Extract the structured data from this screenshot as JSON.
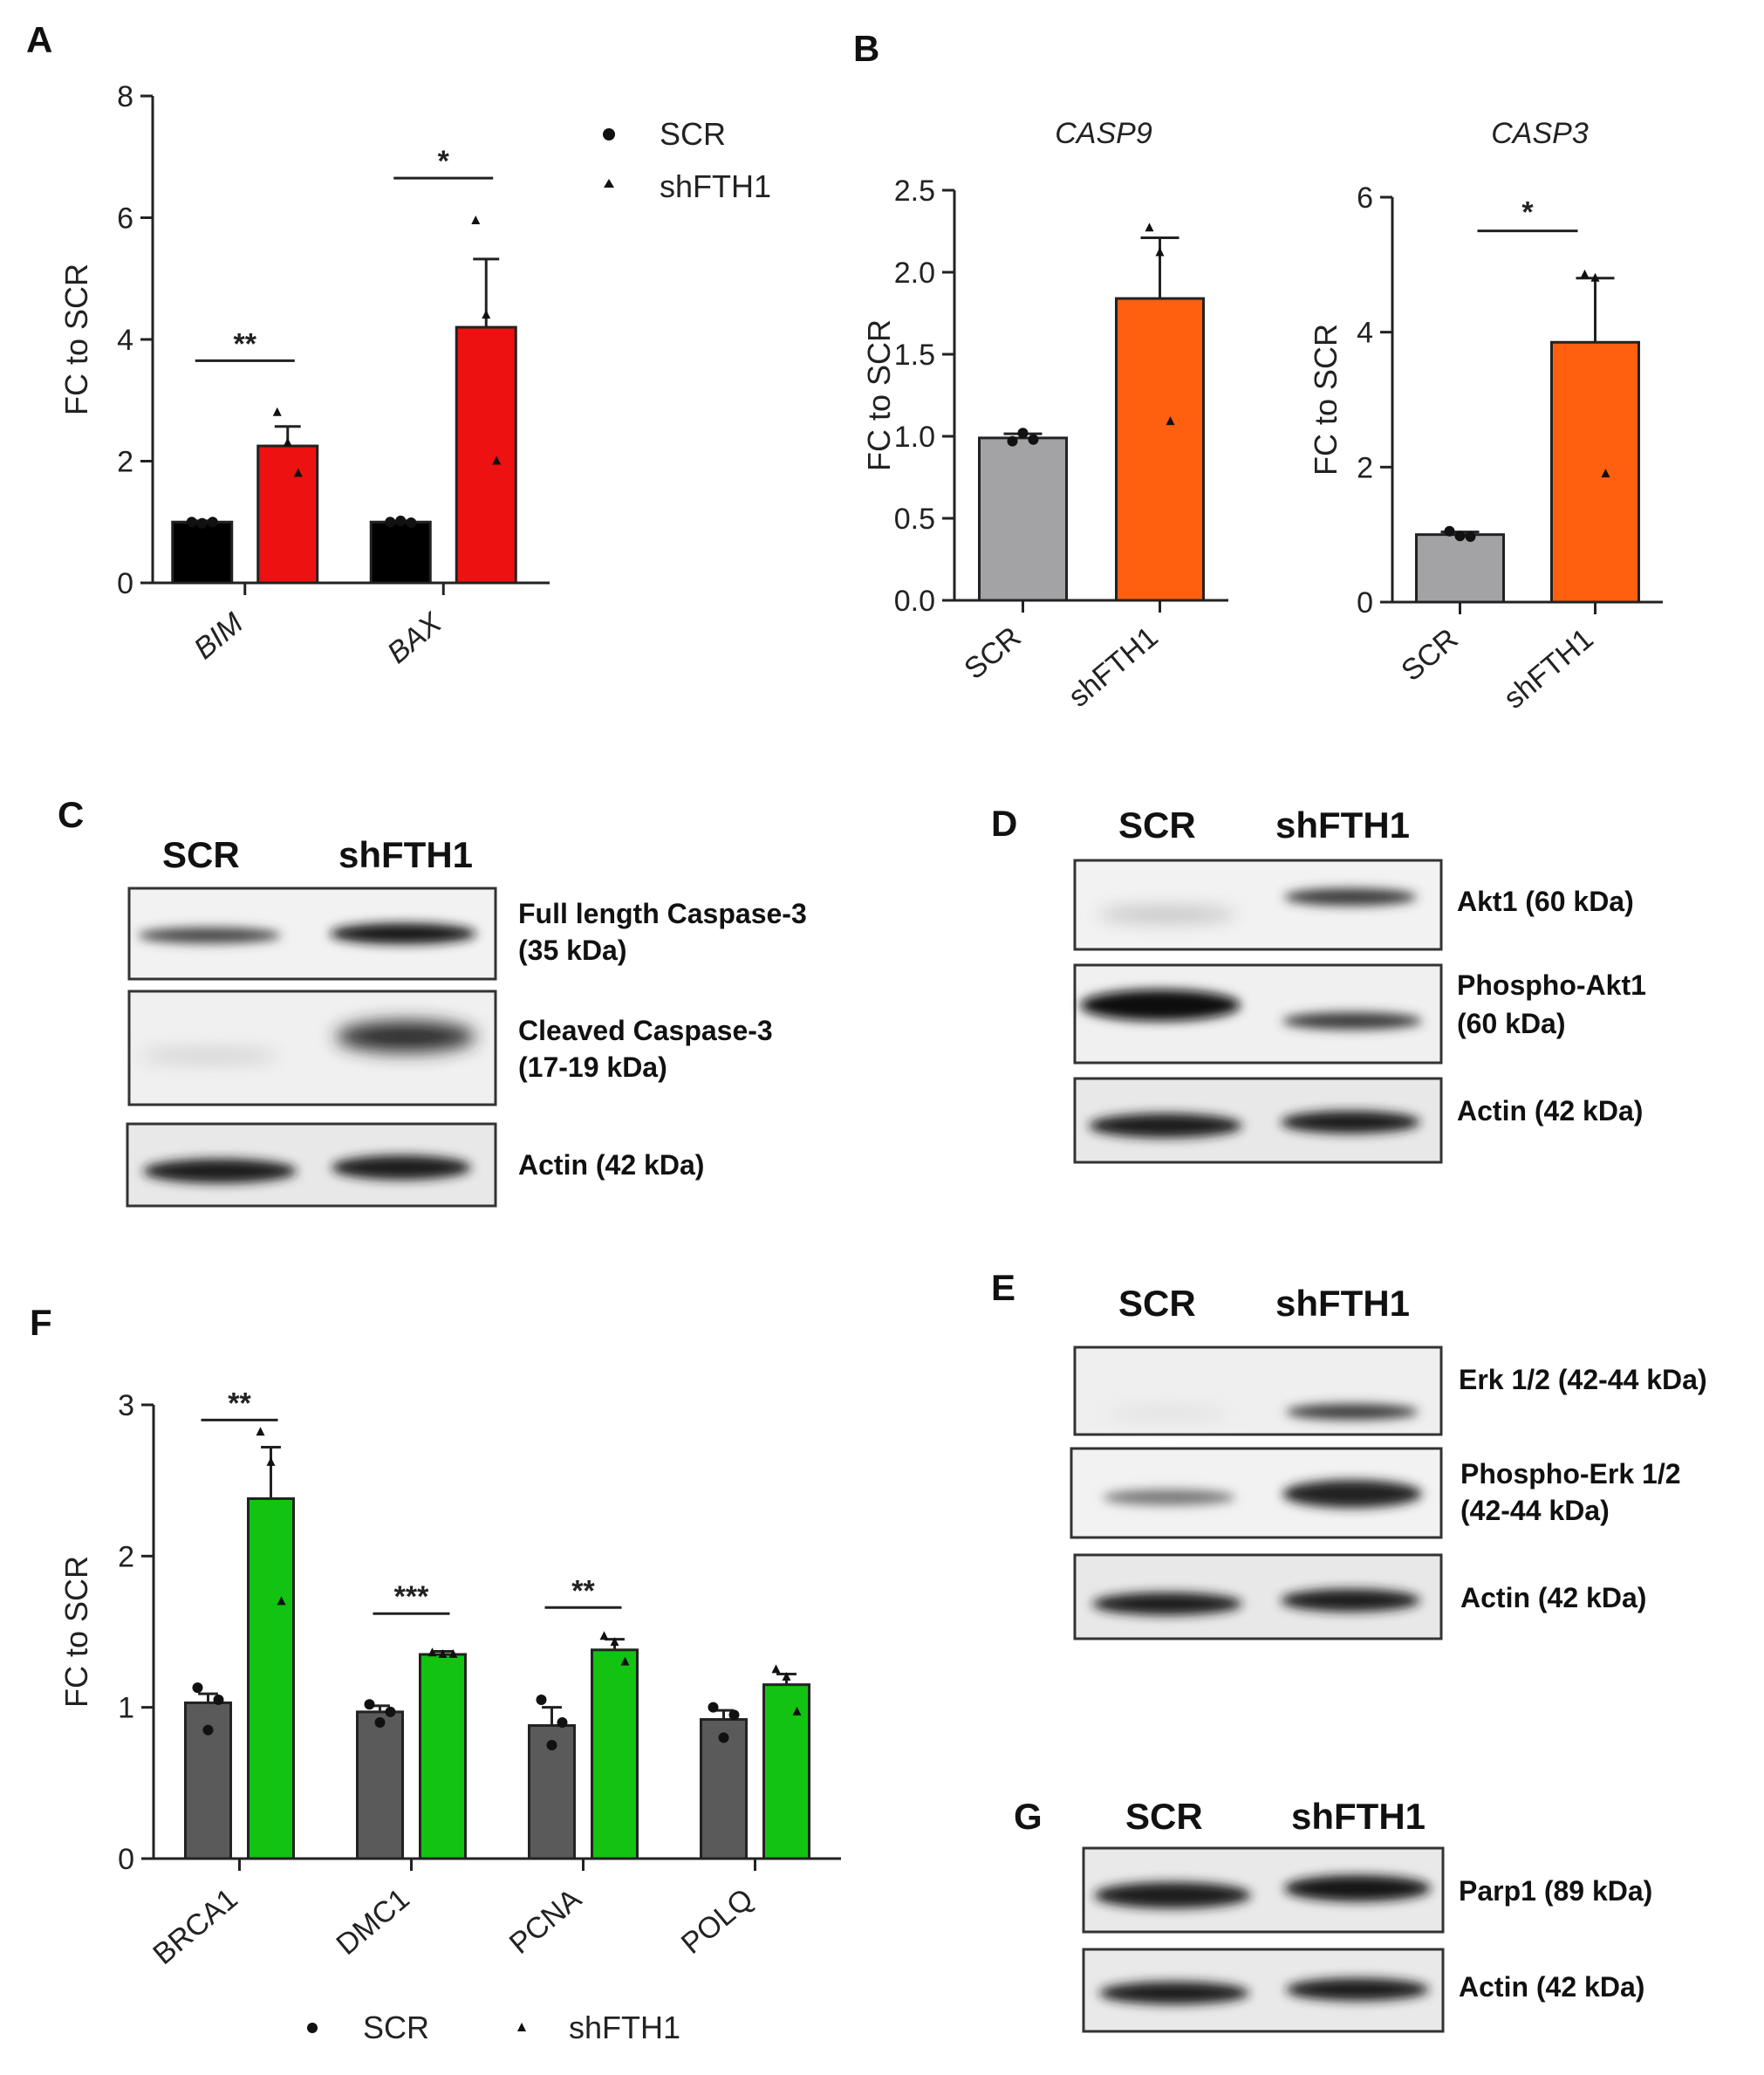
{
  "colors": {
    "scr_black": "#000000",
    "shfth1_red": "#ee1111",
    "scr_grey": "#a3a3a6",
    "shfth1_orange": "#ff6010",
    "scr_darkgrey": "#5a5a5a",
    "shfth1_green": "#12c312"
  },
  "panels": {
    "A": "A",
    "B": "B",
    "C": "C",
    "D": "D",
    "E": "E",
    "F": "F",
    "G": "G"
  },
  "legend": {
    "scr": "SCR",
    "shfth1": "shFTH1"
  },
  "chart_data": [
    {
      "id": "A",
      "type": "bar",
      "title": "",
      "xlabel": "",
      "ylabel": "FC to SCR",
      "ylim": [
        0,
        8
      ],
      "yticks": [
        "0",
        "2",
        "4",
        "6",
        "8"
      ],
      "categories": [
        "BIM",
        "BAX"
      ],
      "categories_italic": true,
      "legend_position": "top-right",
      "series": [
        {
          "name": "SCR",
          "values": [
            1.0,
            1.0
          ],
          "errors": [
            0.02,
            0.02
          ],
          "points": [
            [
              1.0,
              0.98,
              1.0
            ],
            [
              1.0,
              1.02,
              0.99
            ]
          ]
        },
        {
          "name": "shFTH1",
          "values": [
            2.25,
            4.2
          ],
          "errors": [
            0.32,
            1.12
          ],
          "points": [
            [
              2.8,
              2.3,
              1.8
            ],
            [
              5.95,
              4.4,
              2.0
            ]
          ]
        }
      ],
      "significance": [
        {
          "category": 0,
          "label": "**",
          "y": 3.65
        },
        {
          "category": 1,
          "label": "*",
          "y": 6.65
        }
      ]
    },
    {
      "id": "B1",
      "type": "bar",
      "title": "CASP9",
      "xlabel": "",
      "ylabel": "FC to SCR",
      "ylim": [
        0,
        2.5
      ],
      "yticks": [
        "0.0",
        "0.5",
        "1.0",
        "1.5",
        "2.0",
        "2.5"
      ],
      "categories": [
        "SCR",
        "shFTH1"
      ],
      "values": [
        0.99,
        1.84
      ],
      "errors": [
        0.025,
        0.37
      ],
      "points": [
        [
          0.97,
          1.02,
          0.98
        ],
        [
          2.27,
          2.12,
          1.09
        ]
      ],
      "significance": []
    },
    {
      "id": "B2",
      "type": "bar",
      "title": "CASP3",
      "xlabel": "",
      "ylabel": "FC to SCR",
      "ylim": [
        0,
        6
      ],
      "yticks": [
        "0",
        "2",
        "4",
        "6"
      ],
      "categories": [
        "SCR",
        "shFTH1"
      ],
      "values": [
        1.0,
        3.85
      ],
      "errors": [
        0.04,
        0.95
      ],
      "points": [
        [
          1.05,
          0.98,
          0.97
        ],
        [
          4.85,
          4.8,
          1.9
        ]
      ],
      "significance": [
        {
          "label": "*",
          "y": 5.5
        }
      ]
    },
    {
      "id": "F",
      "type": "bar",
      "title": "",
      "xlabel": "",
      "ylabel": "FC to SCR",
      "ylim": [
        0,
        3
      ],
      "yticks": [
        "0",
        "1",
        "2",
        "3"
      ],
      "categories": [
        "BRCA1",
        "DMC1",
        "PCNA",
        "POLQ"
      ],
      "categories_italic": false,
      "legend_position": "bottom",
      "series": [
        {
          "name": "SCR",
          "values": [
            1.03,
            0.97,
            0.88,
            0.92
          ],
          "errors": [
            0.06,
            0.04,
            0.12,
            0.06
          ],
          "points": [
            [
              1.13,
              0.85,
              1.05
            ],
            [
              1.02,
              0.9,
              0.97
            ],
            [
              1.05,
              0.75,
              0.9
            ],
            [
              1.0,
              0.8,
              0.95
            ]
          ]
        },
        {
          "name": "shFTH1",
          "values": [
            2.38,
            1.35,
            1.38,
            1.15
          ],
          "errors": [
            0.34,
            0.02,
            0.07,
            0.07
          ],
          "points": [
            [
              2.82,
              2.62,
              1.7
            ],
            [
              1.36,
              1.35,
              1.35
            ],
            [
              1.47,
              1.43,
              1.3
            ],
            [
              1.25,
              1.2,
              0.97
            ]
          ]
        }
      ],
      "significance": [
        {
          "category": 0,
          "label": "**",
          "y": 2.9
        },
        {
          "category": 1,
          "label": "***",
          "y": 1.62
        },
        {
          "category": 2,
          "label": "**",
          "y": 1.66
        }
      ]
    }
  ],
  "blots": {
    "C": {
      "scr": "SCR",
      "shfth1": "shFTH1",
      "rows": [
        {
          "label1": "Full length Caspase-3",
          "label2": "(35 kDa)"
        },
        {
          "label1": "Cleaved Caspase-3",
          "label2": "(17-19 kDa)"
        },
        {
          "label1": "Actin (42 kDa)",
          "label2": ""
        }
      ]
    },
    "D": {
      "scr": "SCR",
      "shfth1": "shFTH1",
      "rows": [
        {
          "label1": "Akt1 (60 kDa)",
          "label2": ""
        },
        {
          "label1": "Phospho-Akt1",
          "label2": "(60 kDa)"
        },
        {
          "label1": "Actin (42 kDa)",
          "label2": ""
        }
      ]
    },
    "E": {
      "scr": "SCR",
      "shfth1": "shFTH1",
      "rows": [
        {
          "label1": "Erk 1/2 (42-44 kDa)",
          "label2": ""
        },
        {
          "label1": "Phospho-Erk 1/2",
          "label2": "(42-44 kDa)"
        },
        {
          "label1": "Actin (42 kDa)",
          "label2": ""
        }
      ]
    },
    "G": {
      "scr": "SCR",
      "shfth1": "shFTH1",
      "rows": [
        {
          "label1": "Parp1 (89 kDa)",
          "label2": ""
        },
        {
          "label1": "Actin (42 kDa)",
          "label2": ""
        }
      ]
    }
  }
}
